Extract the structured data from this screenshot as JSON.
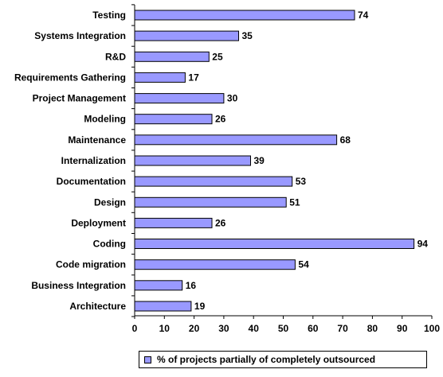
{
  "chart_data": {
    "type": "bar",
    "orientation": "horizontal",
    "categories": [
      "Testing",
      "Systems Integration",
      "R&D",
      "Requirements Gathering",
      "Project Management",
      "Modeling",
      "Maintenance",
      "Internalization",
      "Documentation",
      "Design",
      "Deployment",
      "Coding",
      "Code migration",
      "Business Integration",
      "Architecture"
    ],
    "series": [
      {
        "name": "% of projects partially of completely outsourced",
        "values": [
          74,
          35,
          25,
          17,
          30,
          26,
          68,
          39,
          53,
          51,
          26,
          94,
          54,
          16,
          19
        ],
        "color": "#9999ff"
      }
    ],
    "xlim": [
      0,
      100
    ],
    "xticks": [
      0,
      10,
      20,
      30,
      40,
      50,
      60,
      70,
      80,
      90,
      100
    ],
    "data_labels": true,
    "grid": false,
    "legend_position": "bottom"
  }
}
